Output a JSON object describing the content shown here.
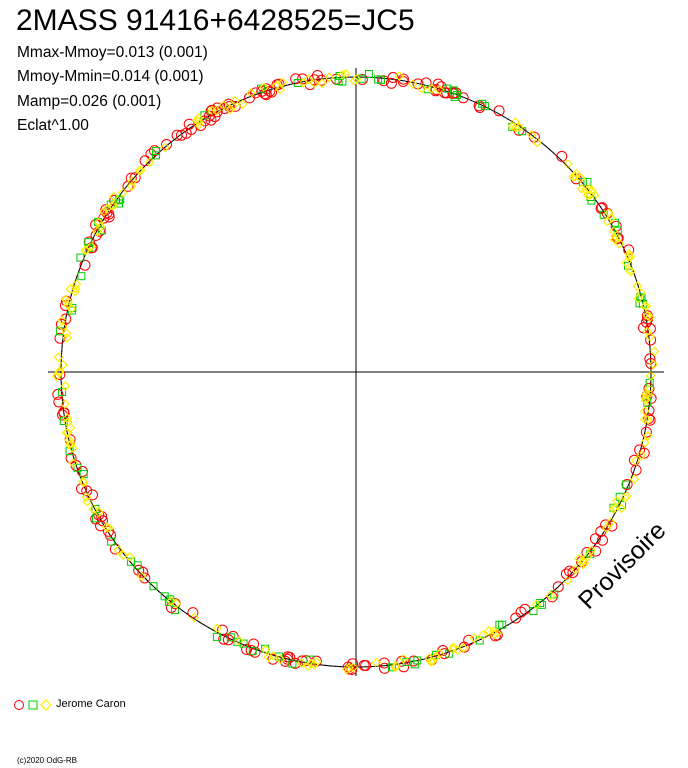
{
  "title": "2MASS 91416+6428525=JC5",
  "stats": [
    "Mmax-Mmoy=0.013 (0.001)",
    "Mmoy-Mmin=0.014 (0.001)",
    "Mamp=0.026 (0.001)",
    "Eclat^1.00"
  ],
  "chart_data": {
    "type": "scatter",
    "projection": "polar",
    "title": "2MASS 91416+6428525=JC5",
    "xlabel": "",
    "ylabel": "",
    "grid": false,
    "axes": "crosshair through centre",
    "reference_curve": {
      "radius": 1.0
    },
    "series": [
      {
        "name": "Jerome Caron",
        "marker": "circle",
        "color": "#ff0000"
      },
      {
        "name": "",
        "marker": "square",
        "color": "#00cc00"
      },
      {
        "name": "",
        "marker": "diamond",
        "color": "#ffee00"
      }
    ],
    "n_points_per_series": [
      190,
      90,
      200
    ],
    "radial_band": [
      0.985,
      1.015
    ],
    "legend_position": "bottom-left"
  },
  "legend": {
    "label": "Jerome Caron"
  },
  "watermark": "Provisoire",
  "copyright": "(c)2020 OdG-RB",
  "colors": {
    "circle": "#ff0000",
    "square": "#00cc00",
    "diamond": "#ffee00",
    "axes": "#000000"
  }
}
